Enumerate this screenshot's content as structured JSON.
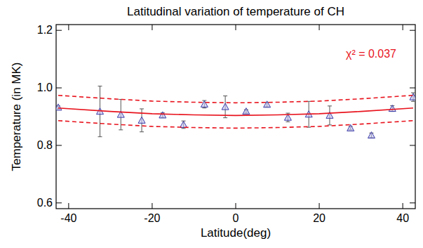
{
  "chart_data": {
    "type": "scatter",
    "title": "Latitudinal variation of temperature of CH",
    "x_label": "Latitude(deg)",
    "y_label": "Temperature (in MK)",
    "annotation": "χ² = 0.037",
    "xlim": [
      -43,
      43
    ],
    "xticks": [
      -40,
      -20,
      0,
      20,
      40
    ],
    "ylim": [
      0.58,
      1.22
    ],
    "yticks": [
      {
        "value": 0.6,
        "label": "0.6"
      },
      {
        "value": 0.8,
        "label": "0.8"
      },
      {
        "value": 1,
        "label": "1.0"
      },
      {
        "value": 1.2,
        "label": "1.2"
      }
    ],
    "series": [
      {
        "type": "scatter",
        "marker": "triangle",
        "color": "#3c3ca8",
        "x": [
          -42.5,
          -32.5,
          -27.5,
          -22.5,
          -17.5,
          -12.5,
          -7.5,
          -2.5,
          2.5,
          7.5,
          12.5,
          17.5,
          22.5,
          27.5,
          32.5,
          37.5,
          42.5
        ],
        "values": [
          0.932,
          0.918,
          0.907,
          0.887,
          0.905,
          0.872,
          0.943,
          0.934,
          0.918,
          0.942,
          0.897,
          0.908,
          0.904,
          0.86,
          0.835,
          0.928,
          0.968
        ],
        "errors": [
          0.005,
          0.088,
          0.053,
          0.04,
          0.008,
          0.013,
          0.013,
          0.038,
          0.006,
          0.008,
          0.015,
          0.045,
          0.033,
          0.006,
          0.008,
          0.01,
          0.015
        ]
      },
      {
        "type": "line",
        "line_style": "solid",
        "color": "#e8141e",
        "x": [
          -42.5,
          -30,
          -20,
          -10,
          0,
          10,
          20,
          30,
          42.5
        ],
        "values": [
          0.93,
          0.918,
          0.91,
          0.906,
          0.904,
          0.906,
          0.91,
          0.918,
          0.93
        ]
      },
      {
        "type": "line",
        "line_style": "dashed",
        "color": "#e8141e",
        "x": [
          -42.5,
          -30,
          -20,
          -10,
          0,
          10,
          20,
          30,
          42.5
        ],
        "values": [
          0.974,
          0.962,
          0.954,
          0.95,
          0.948,
          0.95,
          0.954,
          0.962,
          0.974
        ]
      },
      {
        "type": "line",
        "line_style": "dashed",
        "color": "#e8141e",
        "x": [
          -42.5,
          -30,
          -20,
          -10,
          0,
          10,
          20,
          30,
          42.5
        ],
        "values": [
          0.886,
          0.874,
          0.866,
          0.862,
          0.86,
          0.862,
          0.866,
          0.874,
          0.886
        ]
      }
    ]
  }
}
